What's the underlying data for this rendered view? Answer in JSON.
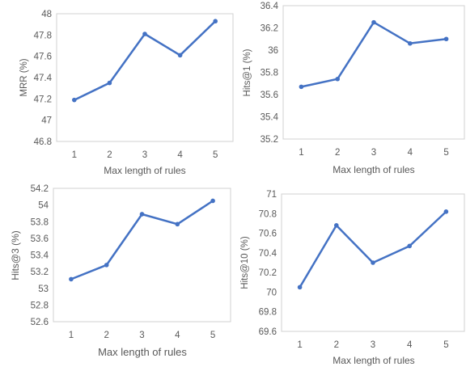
{
  "chart_data": [
    {
      "type": "line",
      "categories": [
        "1",
        "2",
        "3",
        "4",
        "5"
      ],
      "values": [
        47.19,
        47.35,
        47.81,
        47.61,
        47.93
      ],
      "xlabel": "Max length of rules",
      "ylabel": "MRR (%)",
      "ylim": [
        46.8,
        48
      ],
      "yticks": [
        "46.8",
        "47",
        "47.2",
        "47.4",
        "47.6",
        "47.8",
        "48"
      ],
      "grid": false,
      "color": "#4472C4"
    },
    {
      "type": "line",
      "categories": [
        "1",
        "2",
        "3",
        "4",
        "5"
      ],
      "values": [
        35.67,
        35.74,
        36.25,
        36.06,
        36.1
      ],
      "xlabel": "Max length of rules",
      "ylabel": "Hits@1 (%)",
      "ylim": [
        35.2,
        36.4
      ],
      "yticks": [
        "35.2",
        "35.4",
        "35.6",
        "35.8",
        "36",
        "36.2",
        "36.4"
      ],
      "grid": false,
      "color": "#4472C4"
    },
    {
      "type": "line",
      "categories": [
        "1",
        "2",
        "3",
        "4",
        "5"
      ],
      "values": [
        53.11,
        53.28,
        53.89,
        53.77,
        54.05
      ],
      "xlabel": "Max length of rules",
      "ylabel": "Hits@3 (%)",
      "ylim": [
        52.6,
        54.2
      ],
      "yticks": [
        "52.6",
        "52.8",
        "53",
        "53.2",
        "53.4",
        "53.6",
        "53.8",
        "54",
        "54.2"
      ],
      "grid": false,
      "color": "#4472C4"
    },
    {
      "type": "line",
      "categories": [
        "1",
        "2",
        "3",
        "4",
        "5"
      ],
      "values": [
        70.05,
        70.68,
        70.3,
        70.47,
        70.82
      ],
      "xlabel": "Max length of rules",
      "ylabel": "Hits@10 (%)",
      "ylim": [
        69.6,
        71
      ],
      "yticks": [
        "69.6",
        "69.8",
        "70",
        "70.2",
        "70.4",
        "70.6",
        "70.8",
        "71"
      ],
      "grid": false,
      "color": "#4472C4"
    }
  ]
}
